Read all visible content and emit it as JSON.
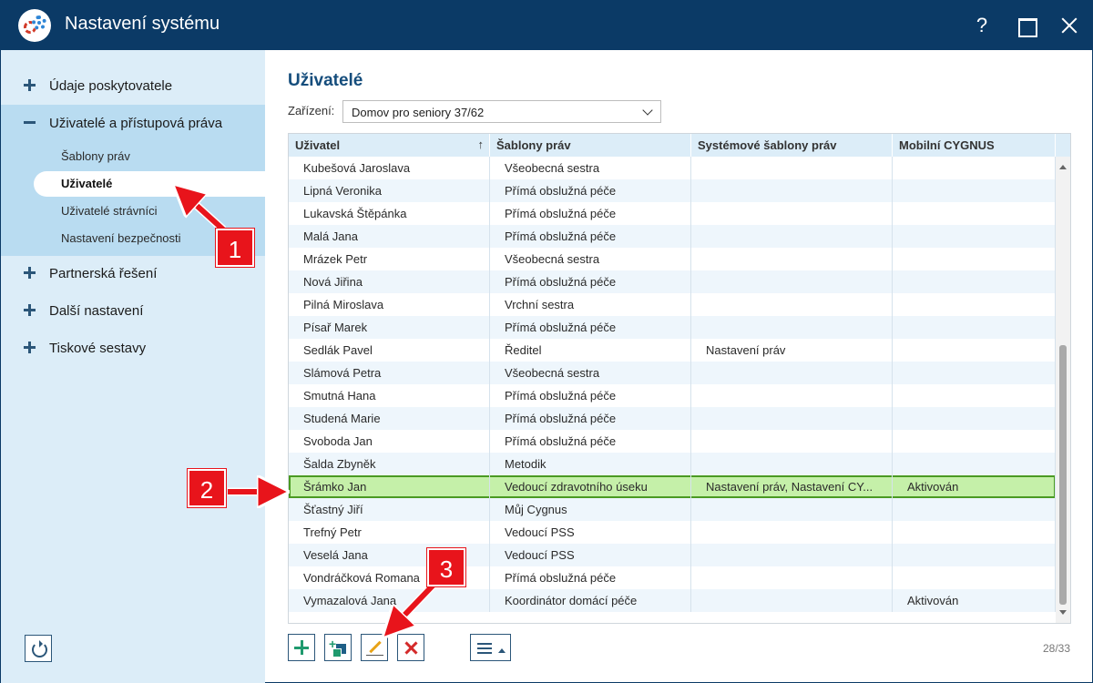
{
  "window": {
    "title": "Nastavení systému",
    "help_glyph": "?"
  },
  "sidebar": {
    "items": [
      {
        "label": "Údaje poskytovatele"
      },
      {
        "label": "Uživatelé a přístupová práva"
      },
      {
        "label": "Partnerská řešení"
      },
      {
        "label": "Další nastavení"
      },
      {
        "label": "Tiskové sestavy"
      }
    ],
    "subitems": [
      {
        "label": "Šablony práv"
      },
      {
        "label": "Uživatelé"
      },
      {
        "label": "Uživatelé strávníci"
      },
      {
        "label": "Nastavení bezpečnosti"
      }
    ]
  },
  "main": {
    "title": "Uživatelé",
    "device_label": "Zařízení:",
    "device_value": "Domov pro seniory 37/62",
    "columns": [
      "Uživatel",
      "Šablony práv",
      "Systémové šablony práv",
      "Mobilní CYGNUS"
    ],
    "sort_glyph": "↑",
    "rows": [
      [
        "Kubešová Jaroslava",
        "Všeobecná sestra",
        "",
        ""
      ],
      [
        "Lipná Veronika",
        "Přímá obslužná péče",
        "",
        ""
      ],
      [
        "Lukavská Štěpánka",
        "Přímá obslužná péče",
        "",
        ""
      ],
      [
        "Malá Jana",
        "Přímá obslužná péče",
        "",
        ""
      ],
      [
        "Mrázek Petr",
        "Všeobecná sestra",
        "",
        ""
      ],
      [
        "Nová Jiřina",
        "Přímá obslužná péče",
        "",
        ""
      ],
      [
        "Pilná Miroslava",
        "Vrchní sestra",
        "",
        ""
      ],
      [
        "Písař Marek",
        "Přímá obslužná péče",
        "",
        ""
      ],
      [
        "Sedlák Pavel",
        "Ředitel",
        "Nastavení práv",
        ""
      ],
      [
        "Slámová Petra",
        "Všeobecná sestra",
        "",
        ""
      ],
      [
        "Smutná Hana",
        "Přímá obslužná péče",
        "",
        ""
      ],
      [
        "Studená Marie",
        "Přímá obslužná péče",
        "",
        ""
      ],
      [
        "Svoboda Jan",
        "Přímá obslužná péče",
        "",
        ""
      ],
      [
        "Šalda Zbyněk",
        "Metodik",
        "",
        ""
      ],
      [
        "Šrámko Jan",
        "Vedoucí zdravotního úseku",
        "Nastavení práv, Nastavení CY...",
        "Aktivován"
      ],
      [
        "Šťastný Jiří",
        "Můj Cygnus",
        "",
        ""
      ],
      [
        "Trefný Petr",
        "Vedoucí PSS",
        "",
        ""
      ],
      [
        "Veselá Jana",
        "Vedoucí PSS",
        "",
        ""
      ],
      [
        "Vondráčková Romana",
        "Přímá obslužná péče",
        "",
        ""
      ],
      [
        "Vymazalová Jana",
        "Koordinátor domácí péče",
        "",
        "Aktivován"
      ]
    ],
    "selected_row_index": 14,
    "counter": "28/33"
  },
  "annotations": [
    {
      "label": "1"
    },
    {
      "label": "2"
    },
    {
      "label": "3"
    }
  ],
  "colors": {
    "titlebar": "#0b3a66",
    "sidebar": "#dcedf8",
    "accent": "#154d7c",
    "selected_row": "#c5f0a9",
    "annotation": "#e8141b"
  }
}
